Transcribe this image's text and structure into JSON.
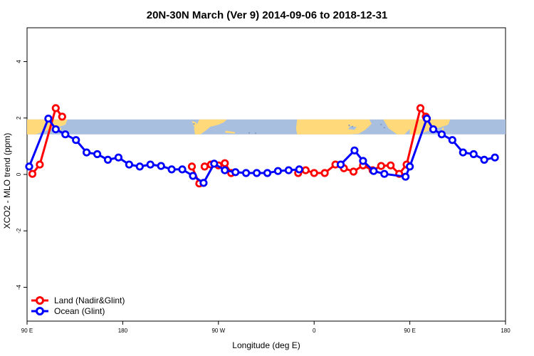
{
  "chart_data": {
    "type": "line",
    "title": "20N-30N March (Ver 9)   2014-09-06 to 2018-12-31",
    "xlabel": "Longitude (deg E)",
    "ylabel": "XCO2 - MLO trend (ppm)",
    "xlim": [
      90,
      540
    ],
    "ylim": [
      -5.2,
      5.2
    ],
    "x_ticks": [
      {
        "value": 90,
        "label": "90 E"
      },
      {
        "value": 180,
        "label": "180"
      },
      {
        "value": 270,
        "label": "90 W"
      },
      {
        "value": 360,
        "label": "0"
      },
      {
        "value": 450,
        "label": "90 E"
      },
      {
        "value": 540,
        "label": "180"
      }
    ],
    "y_ticks": [
      {
        "value": -4,
        "label": "-4"
      },
      {
        "value": -2,
        "label": "-2"
      },
      {
        "value": 0,
        "label": "0"
      },
      {
        "value": 2,
        "label": "2"
      },
      {
        "value": 4,
        "label": "4"
      }
    ],
    "grid": false,
    "legend_position": "bottom-left",
    "map_strip": {
      "y_range": [
        1.42,
        1.95
      ],
      "ocean_color": "#a9bfdf",
      "land_color": "#ffd97a"
    },
    "series": [
      {
        "name": "Land (Nadir&Glint)",
        "color": "#ff0000",
        "segments": [
          [
            [
              95,
              0.02
            ],
            [
              102,
              0.35
            ],
            [
              117,
              2.35
            ],
            [
              123,
              2.05
            ]
          ],
          [
            [
              245,
              0.28
            ],
            [
              252,
              -0.32
            ]
          ],
          [
            [
              257,
              0.28
            ],
            [
              263,
              0.35
            ],
            [
              270,
              0.32
            ],
            [
              276,
              0.4
            ],
            [
              282,
              0.05
            ]
          ],
          [
            [
              345,
              0.05
            ],
            [
              352,
              0.15
            ],
            [
              360,
              0.05
            ],
            [
              370,
              0.05
            ],
            [
              380,
              0.35
            ],
            [
              388,
              0.22
            ],
            [
              397,
              0.1
            ],
            [
              406,
              0.32
            ],
            [
              415,
              0.15
            ],
            [
              423,
              0.3
            ],
            [
              432,
              0.32
            ],
            [
              440,
              0.02
            ],
            [
              447,
              0.35
            ],
            [
              460,
              2.35
            ],
            [
              465,
              2.05
            ]
          ]
        ]
      },
      {
        "name": "Ocean (Glint)",
        "color": "#0000ff",
        "segments": [
          [
            [
              92,
              0.28
            ],
            [
              110,
              1.98
            ],
            [
              117,
              1.6
            ],
            [
              126,
              1.42
            ],
            [
              136,
              1.22
            ],
            [
              146,
              0.78
            ],
            [
              156,
              0.72
            ],
            [
              166,
              0.52
            ],
            [
              176,
              0.6
            ],
            [
              186,
              0.35
            ],
            [
              196,
              0.28
            ],
            [
              206,
              0.35
            ],
            [
              216,
              0.3
            ],
            [
              226,
              0.18
            ],
            [
              236,
              0.18
            ],
            [
              246,
              -0.05
            ],
            [
              256,
              -0.3
            ],
            [
              266,
              0.38
            ],
            [
              276,
              0.15
            ],
            [
              286,
              0.08
            ],
            [
              296,
              0.05
            ],
            [
              306,
              0.05
            ],
            [
              316,
              0.05
            ],
            [
              326,
              0.12
            ],
            [
              336,
              0.15
            ],
            [
              346,
              0.18
            ]
          ],
          [
            [
              385,
              0.35
            ],
            [
              398,
              0.85
            ],
            [
              406,
              0.48
            ],
            [
              416,
              0.12
            ],
            [
              426,
              0.02
            ],
            [
              446,
              -0.08
            ],
            [
              450,
              0.28
            ],
            [
              466,
              1.98
            ],
            [
              472,
              1.6
            ],
            [
              480,
              1.42
            ],
            [
              490,
              1.22
            ],
            [
              500,
              0.78
            ],
            [
              510,
              0.72
            ],
            [
              520,
              0.52
            ],
            [
              530,
              0.6
            ]
          ]
        ]
      }
    ]
  }
}
